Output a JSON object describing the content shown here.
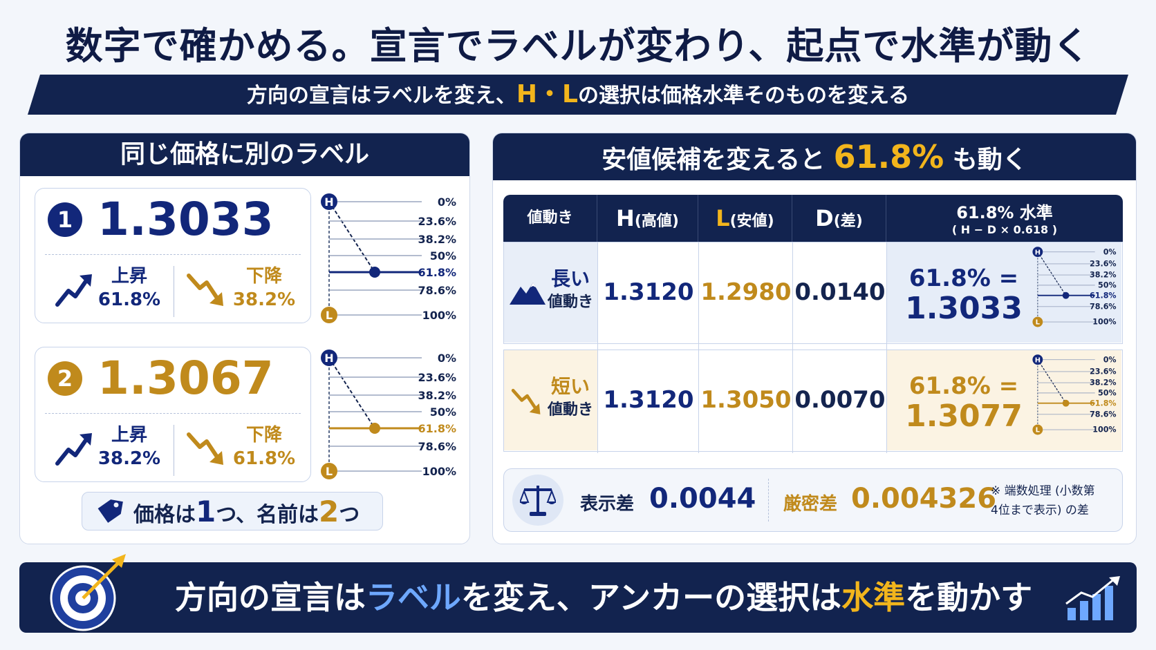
{
  "title": "数字で確かめる。宣言でラベルが変わり、起点で水準が動く",
  "subtitle": {
    "pre": "方向の宣言はラベルを変え、",
    "hl": "H・L",
    "post": "の選択は価格水準そのものを変える"
  },
  "left_panel": {
    "header": "同じ価格に別のラベル",
    "cards": [
      {
        "num": "1",
        "price": "1.3033",
        "up_label": "上昇",
        "up_value": "61.8%",
        "down_label": "下降",
        "down_value": "38.2%"
      },
      {
        "num": "2",
        "price": "1.3067",
        "up_label": "上昇",
        "up_value": "38.2%",
        "down_label": "下降",
        "down_value": "61.8%"
      }
    ],
    "fib_levels": [
      "0%",
      "23.6%",
      "38.2%",
      "50%",
      "61.8%",
      "78.6%",
      "100%"
    ],
    "h_marker": "H",
    "l_marker": "L",
    "tag": {
      "pre": "価格は",
      "n1": "1",
      "mid": "つ、名前は",
      "n2": "2",
      "post": "つ"
    }
  },
  "right_panel": {
    "header": {
      "pre": "安値候補を変えると",
      "big": "61.8%",
      "post": "も動く"
    },
    "table_headers": {
      "col1": "値動き",
      "col2_letter": "H",
      "col2_sub": "(高値)",
      "col3_letter": "L",
      "col3_sub": "(安値)",
      "col4_letter": "D",
      "col4_sub": "(差)",
      "col5_line1": "61.8% 水準",
      "col5_line2": "( H − D × 0.618 )"
    },
    "rows": [
      {
        "label1": "長い",
        "label2": "値動き",
        "h": "1.3120",
        "l": "1.2980",
        "d": "0.0140",
        "formula": "61.8% =",
        "result": "1.3033"
      },
      {
        "label1": "短い",
        "label2": "値動き",
        "h": "1.3120",
        "l": "1.3050",
        "d": "0.0070",
        "formula": "61.8% =",
        "result": "1.3077"
      }
    ],
    "diff": {
      "label1": "表示差",
      "value1": "0.0044",
      "label2": "厳密差",
      "value2": "0.004326",
      "note1": "※ 端数処理 (小数第",
      "note2": "4位まで表示) の差"
    }
  },
  "bottom": {
    "pre": "方向の宣言は",
    "hl1": "ラベル",
    "mid": "を変え、アンカーの選択は",
    "hl2": "水準",
    "post": "を動かす"
  },
  "colors": {
    "navy": "#12234f",
    "blue": "#12277a",
    "gold": "#c08a1c",
    "yellow": "#f2b51c"
  }
}
